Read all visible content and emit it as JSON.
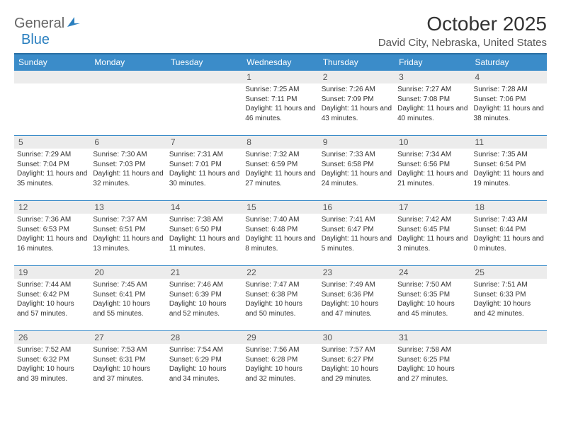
{
  "brand": {
    "part1": "General",
    "part2": "Blue"
  },
  "title": "October 2025",
  "location": "David City, Nebraska, United States",
  "colors": {
    "header_bg": "#3b8cc9",
    "header_border": "#2a6fa3",
    "daynum_bg": "#ececec",
    "text": "#333333",
    "brand_gray": "#666666",
    "brand_blue": "#2a7fbf"
  },
  "weekdays": [
    "Sunday",
    "Monday",
    "Tuesday",
    "Wednesday",
    "Thursday",
    "Friday",
    "Saturday"
  ],
  "weeks": [
    [
      null,
      null,
      null,
      {
        "d": "1",
        "sr": "7:25 AM",
        "ss": "7:11 PM",
        "dl": "11 hours and 46 minutes."
      },
      {
        "d": "2",
        "sr": "7:26 AM",
        "ss": "7:09 PM",
        "dl": "11 hours and 43 minutes."
      },
      {
        "d": "3",
        "sr": "7:27 AM",
        "ss": "7:08 PM",
        "dl": "11 hours and 40 minutes."
      },
      {
        "d": "4",
        "sr": "7:28 AM",
        "ss": "7:06 PM",
        "dl": "11 hours and 38 minutes."
      }
    ],
    [
      {
        "d": "5",
        "sr": "7:29 AM",
        "ss": "7:04 PM",
        "dl": "11 hours and 35 minutes."
      },
      {
        "d": "6",
        "sr": "7:30 AM",
        "ss": "7:03 PM",
        "dl": "11 hours and 32 minutes."
      },
      {
        "d": "7",
        "sr": "7:31 AM",
        "ss": "7:01 PM",
        "dl": "11 hours and 30 minutes."
      },
      {
        "d": "8",
        "sr": "7:32 AM",
        "ss": "6:59 PM",
        "dl": "11 hours and 27 minutes."
      },
      {
        "d": "9",
        "sr": "7:33 AM",
        "ss": "6:58 PM",
        "dl": "11 hours and 24 minutes."
      },
      {
        "d": "10",
        "sr": "7:34 AM",
        "ss": "6:56 PM",
        "dl": "11 hours and 21 minutes."
      },
      {
        "d": "11",
        "sr": "7:35 AM",
        "ss": "6:54 PM",
        "dl": "11 hours and 19 minutes."
      }
    ],
    [
      {
        "d": "12",
        "sr": "7:36 AM",
        "ss": "6:53 PM",
        "dl": "11 hours and 16 minutes."
      },
      {
        "d": "13",
        "sr": "7:37 AM",
        "ss": "6:51 PM",
        "dl": "11 hours and 13 minutes."
      },
      {
        "d": "14",
        "sr": "7:38 AM",
        "ss": "6:50 PM",
        "dl": "11 hours and 11 minutes."
      },
      {
        "d": "15",
        "sr": "7:40 AM",
        "ss": "6:48 PM",
        "dl": "11 hours and 8 minutes."
      },
      {
        "d": "16",
        "sr": "7:41 AM",
        "ss": "6:47 PM",
        "dl": "11 hours and 5 minutes."
      },
      {
        "d": "17",
        "sr": "7:42 AM",
        "ss": "6:45 PM",
        "dl": "11 hours and 3 minutes."
      },
      {
        "d": "18",
        "sr": "7:43 AM",
        "ss": "6:44 PM",
        "dl": "11 hours and 0 minutes."
      }
    ],
    [
      {
        "d": "19",
        "sr": "7:44 AM",
        "ss": "6:42 PM",
        "dl": "10 hours and 57 minutes."
      },
      {
        "d": "20",
        "sr": "7:45 AM",
        "ss": "6:41 PM",
        "dl": "10 hours and 55 minutes."
      },
      {
        "d": "21",
        "sr": "7:46 AM",
        "ss": "6:39 PM",
        "dl": "10 hours and 52 minutes."
      },
      {
        "d": "22",
        "sr": "7:47 AM",
        "ss": "6:38 PM",
        "dl": "10 hours and 50 minutes."
      },
      {
        "d": "23",
        "sr": "7:49 AM",
        "ss": "6:36 PM",
        "dl": "10 hours and 47 minutes."
      },
      {
        "d": "24",
        "sr": "7:50 AM",
        "ss": "6:35 PM",
        "dl": "10 hours and 45 minutes."
      },
      {
        "d": "25",
        "sr": "7:51 AM",
        "ss": "6:33 PM",
        "dl": "10 hours and 42 minutes."
      }
    ],
    [
      {
        "d": "26",
        "sr": "7:52 AM",
        "ss": "6:32 PM",
        "dl": "10 hours and 39 minutes."
      },
      {
        "d": "27",
        "sr": "7:53 AM",
        "ss": "6:31 PM",
        "dl": "10 hours and 37 minutes."
      },
      {
        "d": "28",
        "sr": "7:54 AM",
        "ss": "6:29 PM",
        "dl": "10 hours and 34 minutes."
      },
      {
        "d": "29",
        "sr": "7:56 AM",
        "ss": "6:28 PM",
        "dl": "10 hours and 32 minutes."
      },
      {
        "d": "30",
        "sr": "7:57 AM",
        "ss": "6:27 PM",
        "dl": "10 hours and 29 minutes."
      },
      {
        "d": "31",
        "sr": "7:58 AM",
        "ss": "6:25 PM",
        "dl": "10 hours and 27 minutes."
      },
      null
    ]
  ],
  "labels": {
    "sunrise": "Sunrise:",
    "sunset": "Sunset:",
    "daylight": "Daylight:"
  }
}
